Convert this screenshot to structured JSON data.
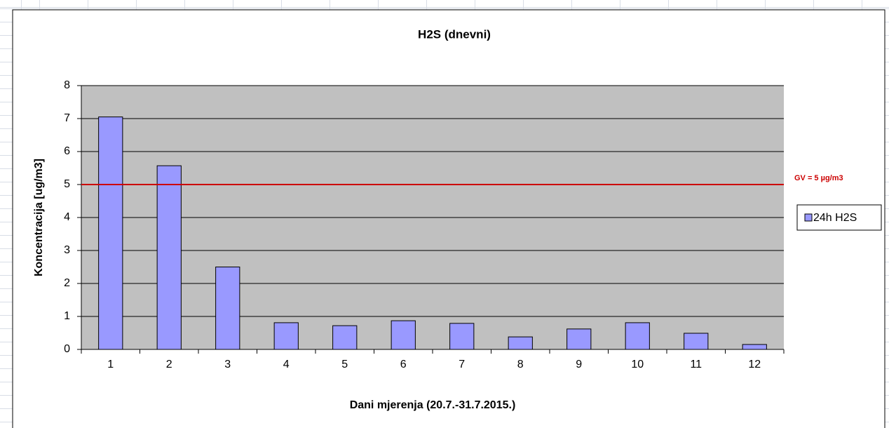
{
  "chart_data": {
    "type": "bar",
    "title": "H2S (dnevni)",
    "x_label": "Dani mjerenja (20.7.-31.7.2015.)",
    "y_label": "Koncentracija  [ug/m3]",
    "categories": [
      1,
      2,
      3,
      4,
      5,
      6,
      7,
      8,
      9,
      10,
      11,
      12
    ],
    "series": [
      {
        "name": "24h H2S",
        "color": "#9999ff",
        "values": [
          7.05,
          5.57,
          2.5,
          0.81,
          0.72,
          0.87,
          0.79,
          0.38,
          0.62,
          0.81,
          0.49,
          0.15
        ]
      }
    ],
    "ylim": [
      0,
      8
    ],
    "yticks": [
      0,
      1,
      2,
      3,
      4,
      5,
      6,
      7,
      8
    ],
    "grid": true,
    "reference_line": {
      "value": 5,
      "label": "GV = 5 µg/m3",
      "color": "#cc0000"
    },
    "legend": "right"
  }
}
